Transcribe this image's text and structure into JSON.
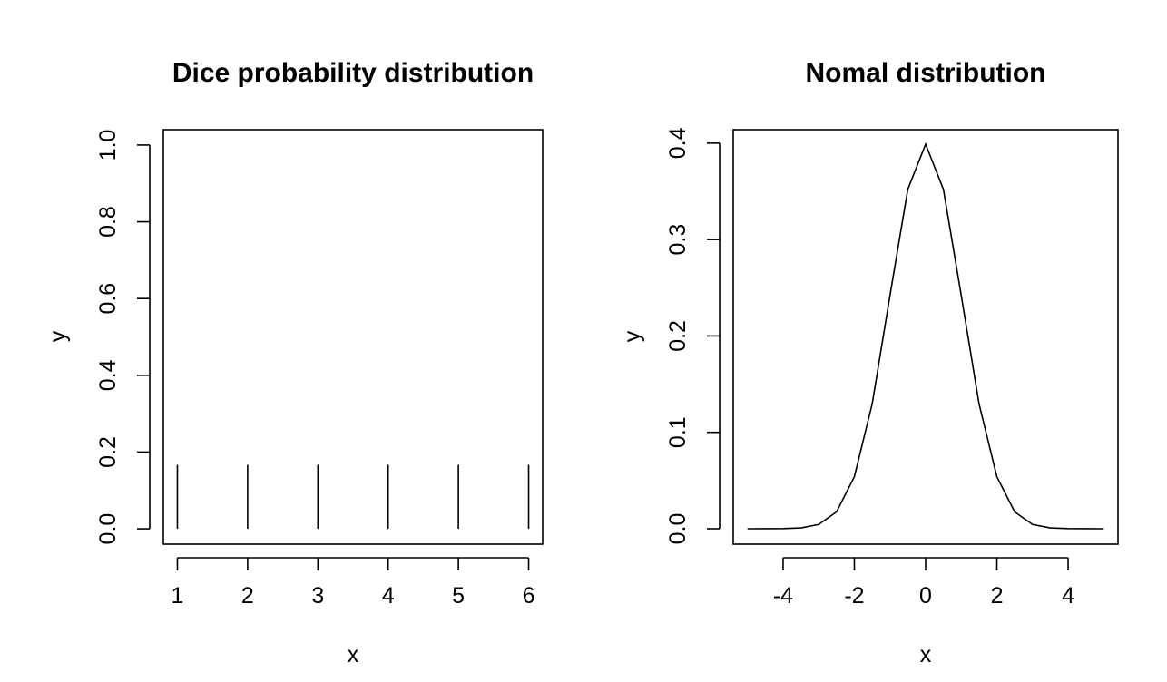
{
  "chart_data": [
    {
      "type": "bar",
      "style": "needle",
      "title": "Dice probability distribution",
      "xlabel": "x",
      "ylabel": "y",
      "xlim": [
        0.8,
        6.2
      ],
      "ylim": [
        -0.04,
        1.04
      ],
      "x": [
        1,
        2,
        3,
        4,
        5,
        6
      ],
      "y": [
        0.1667,
        0.1667,
        0.1667,
        0.1667,
        0.1667,
        0.1667
      ],
      "xticks": [
        1,
        2,
        3,
        4,
        5,
        6
      ],
      "xtick_labels": [
        "1",
        "2",
        "3",
        "4",
        "5",
        "6"
      ],
      "yticks": [
        0,
        0.2,
        0.4,
        0.6,
        0.8,
        1.0
      ],
      "ytick_labels": [
        "0.0",
        "0.2",
        "0.4",
        "0.6",
        "0.8",
        "1.0"
      ],
      "grid": false,
      "line_color": "#000000"
    },
    {
      "type": "line",
      "title": "Nomal distribution",
      "xlabel": "x",
      "ylabel": "y",
      "xlim": [
        -5.4,
        5.4
      ],
      "ylim": [
        -0.016,
        0.414
      ],
      "x": [
        -5,
        -4.5,
        -4,
        -3.5,
        -3,
        -2.5,
        -2,
        -1.5,
        -1,
        -0.5,
        0,
        0.5,
        1,
        1.5,
        2,
        2.5,
        3,
        3.5,
        4,
        4.5,
        5
      ],
      "y": [
        1.5e-06,
        1.6e-05,
        0.000134,
        0.000873,
        0.004432,
        0.017528,
        0.053991,
        0.129518,
        0.241971,
        0.352065,
        0.398942,
        0.352065,
        0.241971,
        0.129518,
        0.053991,
        0.017528,
        0.004432,
        0.000873,
        0.000134,
        1.6e-05,
        1.5e-06
      ],
      "xticks": [
        -4,
        -2,
        0,
        2,
        4
      ],
      "xtick_labels": [
        "-4",
        "-2",
        "0",
        "2",
        "4"
      ],
      "yticks": [
        0,
        0.1,
        0.2,
        0.3,
        0.4
      ],
      "ytick_labels": [
        "0.0",
        "0.1",
        "0.2",
        "0.3",
        "0.4"
      ],
      "grid": false,
      "line_color": "#000000"
    }
  ]
}
